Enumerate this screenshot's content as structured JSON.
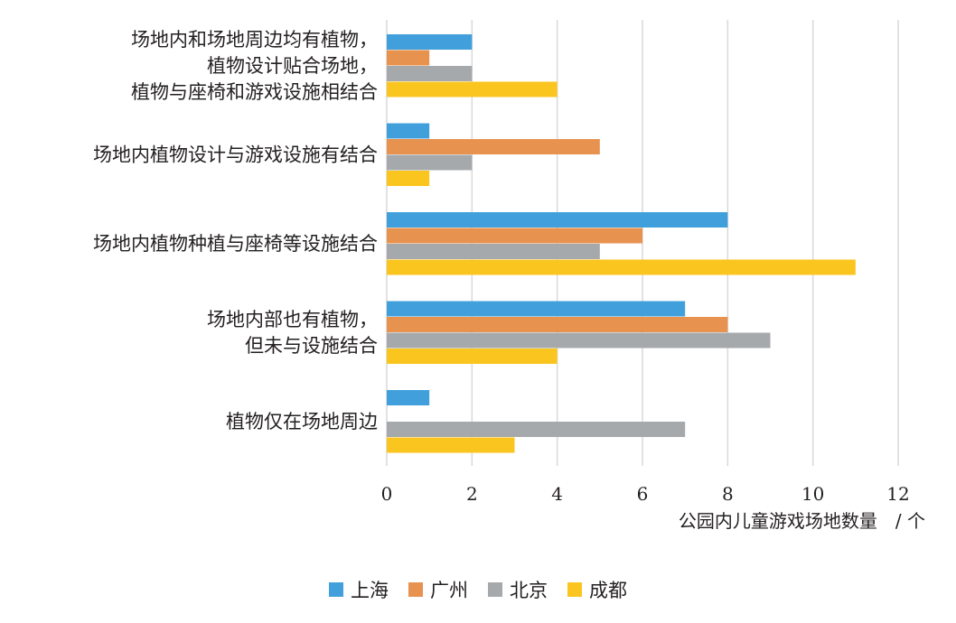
{
  "chart_data": {
    "type": "bar",
    "orientation": "horizontal",
    "categories": [
      [
        "场地内和场地周边均有植物，",
        "植物设计贴合场地，",
        "植物与座椅和游戏设施相结合"
      ],
      [
        "场地内植物设计与游戏设施有结合"
      ],
      [
        "场地内植物种植与座椅等设施结合"
      ],
      [
        "场地内部也有植物，",
        "但未与设施结合"
      ],
      [
        "植物仅在场地周边"
      ]
    ],
    "series": [
      {
        "name": "上海",
        "color": "#41a0dc",
        "values": [
          2,
          1,
          8,
          7,
          1
        ]
      },
      {
        "name": "广州",
        "color": "#e8924f",
        "values": [
          1,
          5,
          6,
          8,
          0
        ]
      },
      {
        "name": "北京",
        "color": "#a6a9ac",
        "values": [
          2,
          2,
          5,
          9,
          7
        ]
      },
      {
        "name": "成都",
        "color": "#fbc520",
        "values": [
          4,
          1,
          11,
          4,
          3
        ]
      }
    ],
    "xticks": [
      "0",
      "2",
      "4",
      "6",
      "8",
      "10",
      "12"
    ],
    "xlim": [
      0,
      12
    ],
    "xlabel": "公园内儿童游戏场地数量　/ 个",
    "grid": true,
    "legend_position": "bottom"
  }
}
